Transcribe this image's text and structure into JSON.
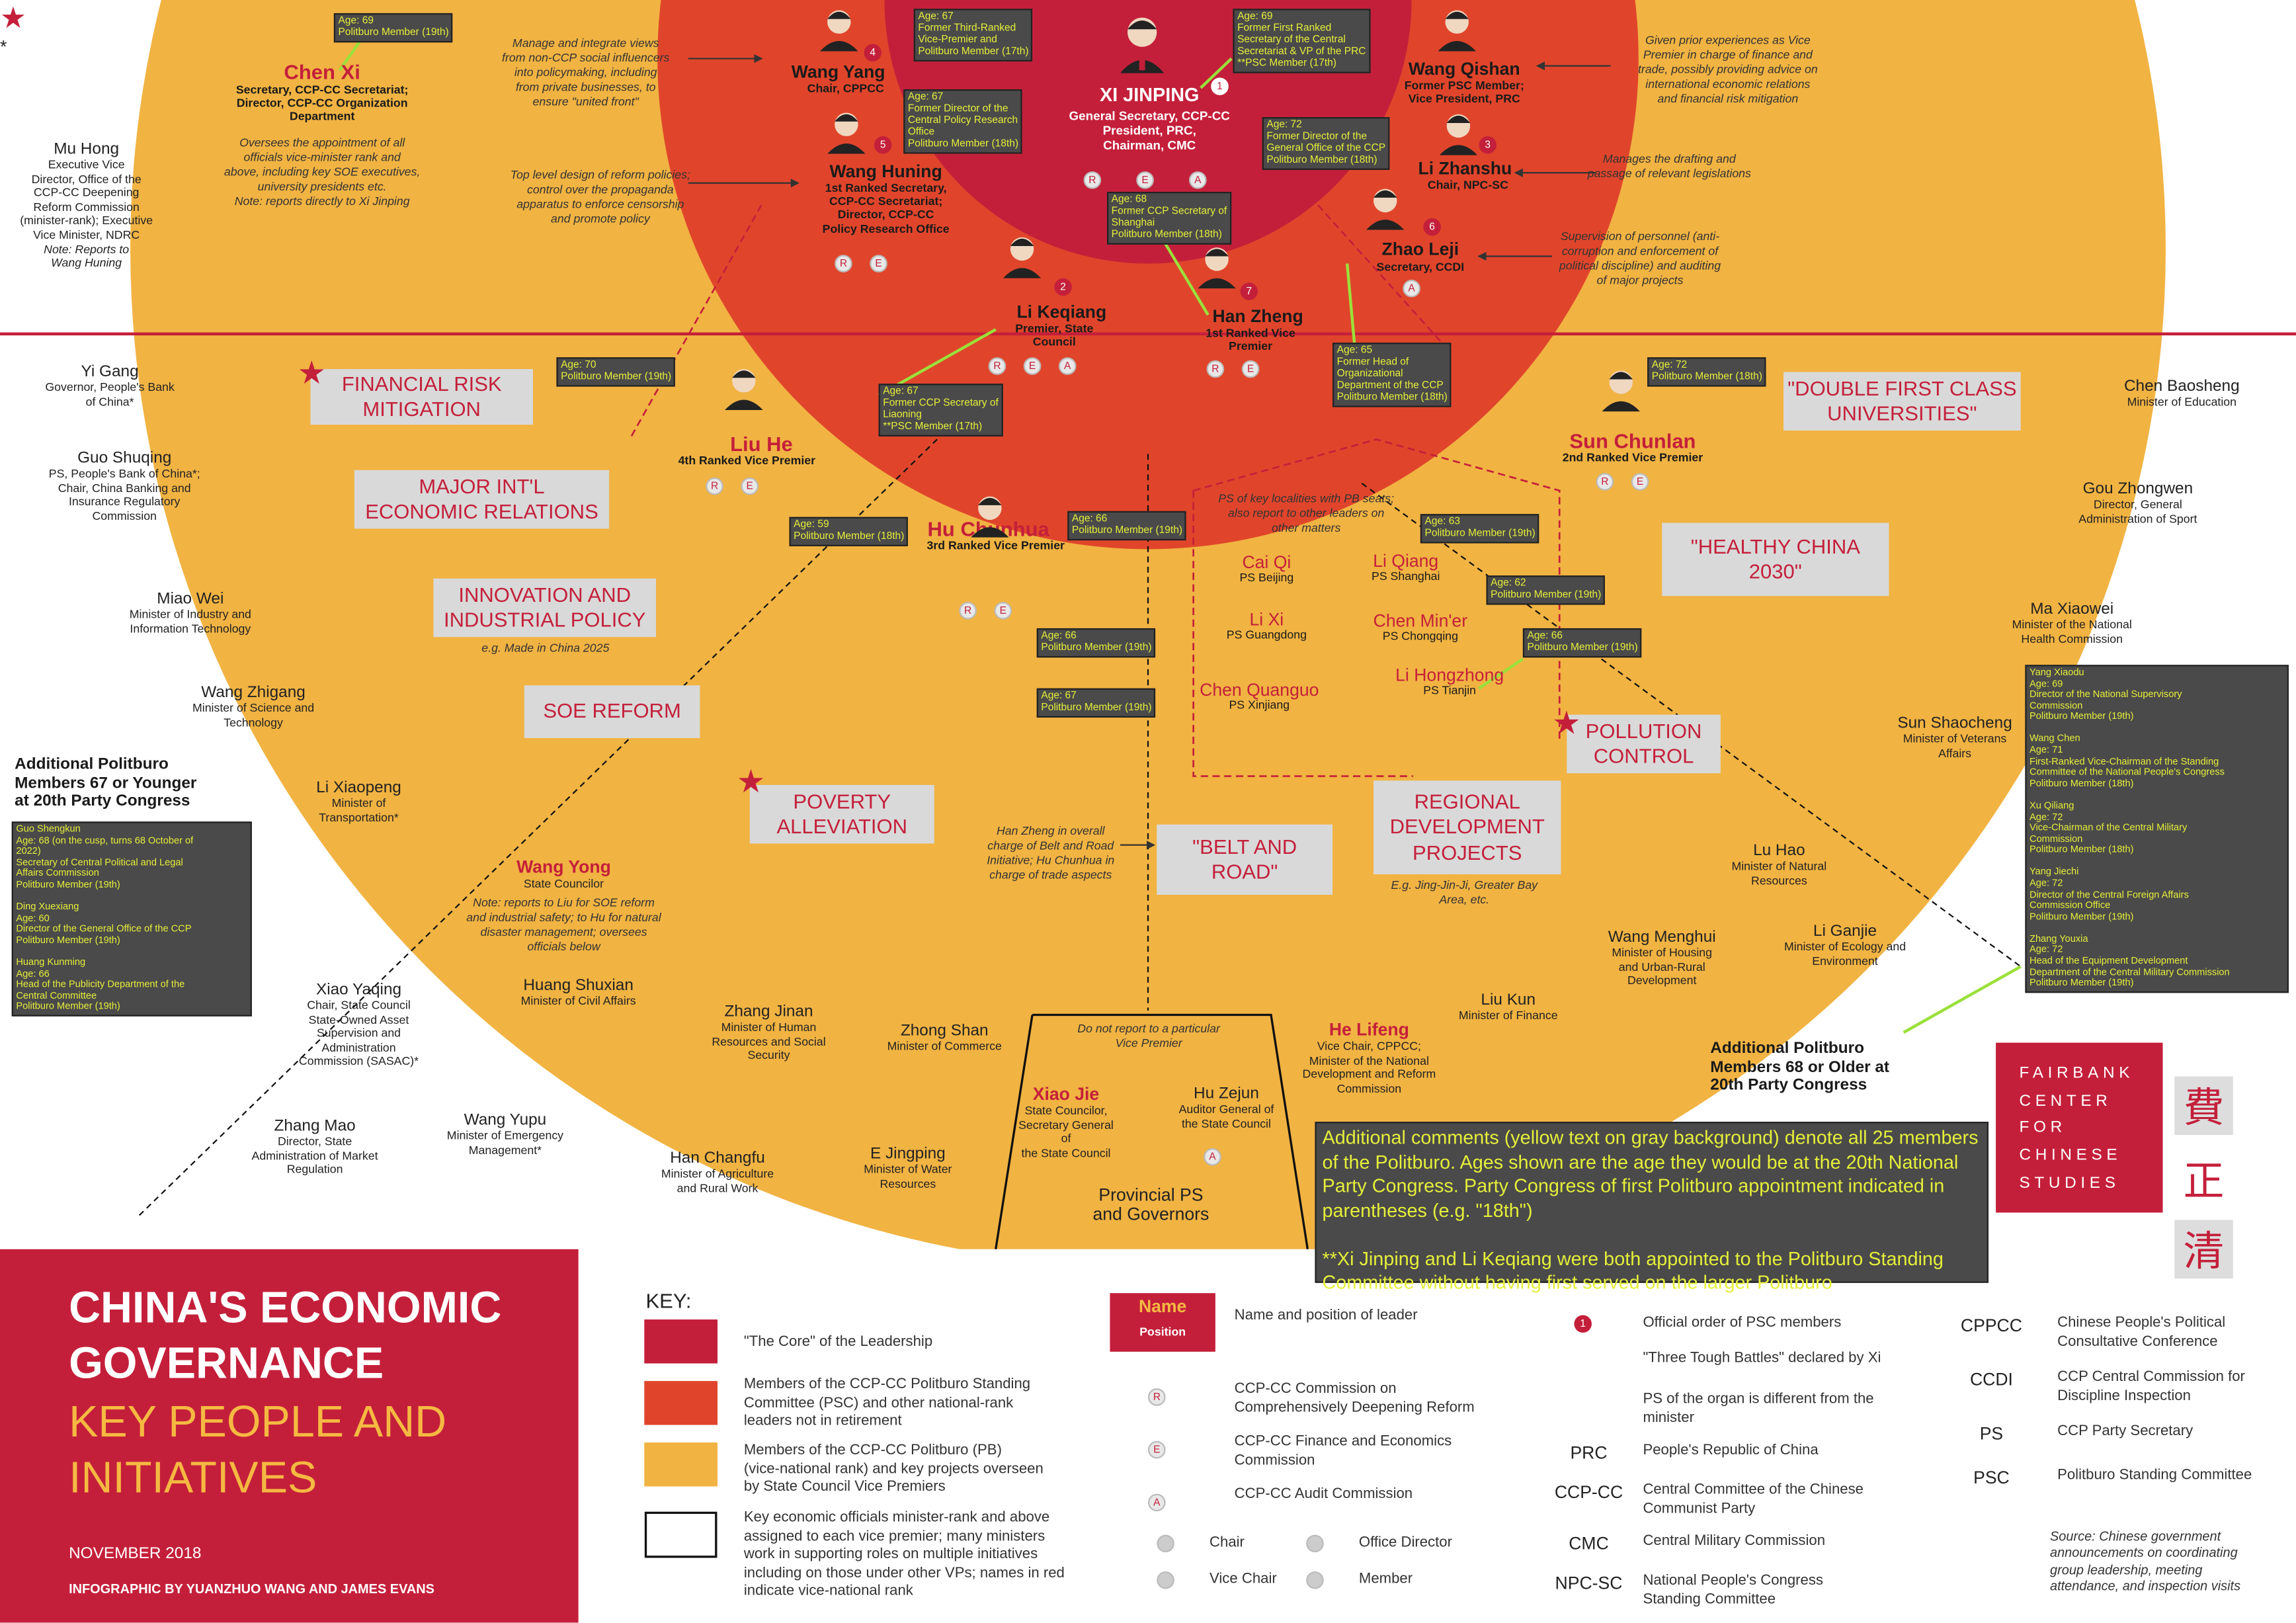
{
  "colors": {
    "core": "#c41f3a",
    "psc": "#e0452b",
    "pb": "#f1b342",
    "info_bg": "#4a4a4a",
    "info_text": "#e5ef3a",
    "project_box": "#d9d9d9"
  },
  "core": {
    "name": "XI JINPING",
    "position": "General Secretary, CCP-CC\nPresident, PRC,\nChairman, CMC",
    "rank": "1",
    "info": [
      "Age: 69",
      "Former First Ranked",
      "Secretary of the Central",
      "Secretariat & VP of the PRC",
      "**PSC Member (17th)"
    ],
    "badges": [
      "R",
      "E",
      "A"
    ]
  },
  "psc": [
    {
      "id": "wang-yang",
      "name": "Wang Yang",
      "position": "Chair, CPPCC",
      "rank": "4",
      "info": [
        "Age: 67",
        "Former Third-Ranked",
        "Vice-Premier and",
        "Politburo Member (17th)"
      ]
    },
    {
      "id": "wang-huning",
      "name": "Wang Huning",
      "position": "1st Ranked Secretary,\nCCP-CC Secretariat;\nDirector, CCP-CC\nPolicy Research Office",
      "rank": "5",
      "info": [
        "Age: 67",
        "Former Director of the",
        "Central Policy Research",
        "Office",
        "Politburo Member (18th)"
      ],
      "badges": [
        "R",
        "E"
      ]
    },
    {
      "id": "wang-qishan",
      "name": "Wang Qishan",
      "position": "Former PSC Member;\nVice President, PRC",
      "rank": ""
    },
    {
      "id": "li-zhanshu",
      "name": "Li Zhanshu",
      "position": "Chair, NPC-SC",
      "rank": "3",
      "info": [
        "Age: 72",
        "Former Director of the",
        "General Office of the CCP",
        "Politburo Member (18th)"
      ]
    },
    {
      "id": "zhao-leji",
      "name": "Zhao Leji",
      "position": "Secretary, CCDI",
      "rank": "6",
      "info": [
        "Age: 65",
        "Former Head of",
        "Organizational",
        "Department of the CCP",
        "Politburo Member (18th)"
      ],
      "badges": [
        "A"
      ]
    },
    {
      "id": "li-keqiang",
      "name": "Li Keqiang",
      "position": "Premier, State\nCouncil",
      "rank": "2",
      "info": [
        "Age: 67",
        "Former CCP Secretary of",
        "Liaoning",
        "**PSC Member (17th)"
      ],
      "badges": [
        "R",
        "E",
        "A"
      ]
    },
    {
      "id": "han-zheng",
      "name": "Han Zheng",
      "position": "1st Ranked Vice\nPremier",
      "rank": "7",
      "info": [
        "Age: 68",
        "Former CCP Secretary of",
        "Shanghai",
        "Politburo Member (18th)"
      ],
      "badges": [
        "R",
        "E"
      ]
    }
  ],
  "chen_xi": {
    "name": "Chen Xi",
    "position": "Secretary, CCP-CC Secretariat;\nDirector, CCP-CC Organization\nDepartment",
    "note": "Oversees the appointment of all\nofficials vice-minister rank and\nabove, including key SOE executives,\nuniversity presidents etc.\nNote: reports directly to Xi Jinping",
    "info": [
      "Age: 69",
      "Politburo Member (19th)"
    ]
  },
  "notes": {
    "wang_yang": "Manage and integrate views\nfrom non-CCP social influencers\ninto policymaking, including\nfrom private businesses, to\nensure \"united front\"",
    "wang_huning": "Top level design of reform policies;\ncontrol over the propaganda\napparatus to enforce censorship\nand promote policy",
    "wang_qishan": "Given prior experiences as Vice\nPremier in charge of finance and\ntrade, possibly providing advice on\ninternational economic relations\nand financial risk mitigation",
    "li_zhanshu": "Manages the drafting and\npassage of relevant legislations",
    "zhao_leji": "Supervision of personnel (anti-\ncorruption and enforcement of\npolitical discipline) and auditing\nof major projects",
    "ps_localities": "PS of key localities with PB seats;\nalso report to other leaders on\nother matters",
    "han_zheng_br": "Han Zheng in overall\ncharge of Belt and Road\nInitiative; Hu Chunhua in\ncharge of trade aspects",
    "innovation": "e.g. Made in China 2025",
    "regional": "E.g. Jing-Jin-Ji, Greater Bay\nArea, etc.",
    "not_report": "Do not report to a particular\nVice Premier",
    "wang_yong": "Note: reports to Liu for SOE reform\nand industrial safety; to Hu for natural\ndisaster management; oversees\nofficials below"
  },
  "vice_premiers": [
    {
      "id": "liu-he",
      "name": "Liu He",
      "position": "4th Ranked Vice Premier",
      "info": [
        "Age: 70",
        "Politburo Member (19th)"
      ],
      "badges": [
        "R",
        "E"
      ]
    },
    {
      "id": "hu-chunhua",
      "name": "Hu Chunhua",
      "position": "3rd Ranked Vice Premier",
      "info": [
        "Age: 59",
        "Politburo Member (18th)"
      ],
      "badges": [
        "R",
        "E"
      ]
    },
    {
      "id": "sun-chunlan",
      "name": "Sun Chunlan",
      "position": "2nd Ranked Vice Premier",
      "info": [
        "Age: 72",
        "Politburo Member (18th)"
      ],
      "badges": [
        "R",
        "E"
      ]
    }
  ],
  "party_secretaries": [
    {
      "name": "Cai Qi",
      "position": "PS Beijing",
      "info": [
        "Age: 66",
        "Politburo Member (19th)"
      ]
    },
    {
      "name": "Li Xi",
      "position": "PS Guangdong",
      "info": [
        "Age: 66",
        "Politburo Member (19th)"
      ]
    },
    {
      "name": "Chen Quanguo",
      "position": "PS Xinjiang",
      "info": [
        "Age: 67",
        "Politburo Member (19th)"
      ]
    },
    {
      "name": "Li Qiang",
      "position": "PS Shanghai",
      "info": [
        "Age: 63",
        "Politburo Member (19th)"
      ]
    },
    {
      "name": "Chen Min'er",
      "position": "PS Chongqing",
      "info": [
        "Age: 62",
        "Politburo Member (19th)"
      ]
    },
    {
      "name": "Li Hongzhong",
      "position": "PS Tianjin",
      "info": [
        "Age: 66",
        "Politburo Member (19th)"
      ]
    }
  ],
  "projects": [
    "FINANCIAL RISK\nMITIGATION",
    "MAJOR INT'L\nECONOMIC RELATIONS",
    "INNOVATION AND\nINDUSTRIAL POLICY",
    "SOE REFORM",
    "POVERTY\nALLEVIATION",
    "\"BELT AND\nROAD\"",
    "\"DOUBLE FIRST CLASS\nUNIVERSITIES\"",
    "\"HEALTHY CHINA\n2030\"",
    "POLLUTION\nCONTROL",
    "REGIONAL\nDEVELOPMENT\nPROJECTS"
  ],
  "officials": [
    {
      "name": "Mu Hong",
      "position": "Executive Vice\nDirector, Office of the\nCCP-CC Deepening\nReform Commission\n(minister-rank); Executive\nVice Minister, NDRC",
      "note": "Note: Reports to\nWang Huning"
    },
    {
      "name": "Yi Gang",
      "position": "Governor, People's Bank\nof China*"
    },
    {
      "name": "Guo Shuqing",
      "position": "PS, People's Bank of China*;\nChair, China Banking and\nInsurance Regulatory\nCommission"
    },
    {
      "name": "Miao Wei",
      "position": "Minister of Industry and\nInformation Technology"
    },
    {
      "name": "Wang Zhigang",
      "position": "Minister of Science and\nTechnology"
    },
    {
      "name": "Li Xiaopeng",
      "position": "Minister of\nTransportation*"
    },
    {
      "name": "Wang Yong",
      "position": "State Councilor",
      "red": true
    },
    {
      "name": "Xiao Yaqing",
      "position": "Chair, State Council\nState-Owned Asset\nSupervision and\nAdministration\nCommission (SASAC)*"
    },
    {
      "name": "Huang Shuxian",
      "position": "Minister of Civil Affairs"
    },
    {
      "name": "Zhang Jinan",
      "position": "Minister of Human\nResources and Social\nSecurity"
    },
    {
      "name": "Zhong Shan",
      "position": "Minister of Commerce"
    },
    {
      "name": "Zhang Mao",
      "position": "Director, State\nAdministration of Market\nRegulation"
    },
    {
      "name": "Wang Yupu",
      "position": "Minister of Emergency\nManagement*"
    },
    {
      "name": "Han Changfu",
      "position": "Minister of Agriculture\nand Rural Work"
    },
    {
      "name": "E Jingping",
      "position": "Minister of Water\nResources"
    },
    {
      "name": "Xiao Jie",
      "position": "State Councilor,\nSecretary General of\nthe State Council",
      "red": true
    },
    {
      "name": "Hu Zejun",
      "position": "Auditor General of\nthe State Council"
    },
    {
      "name": "He Lifeng",
      "position": "Vice Chair, CPPCC;\nMinister of the National\nDevelopment and Reform\nCommission",
      "red": true
    },
    {
      "name": "Liu Kun",
      "position": "Minister of Finance"
    },
    {
      "name": "Wang Menghui",
      "position": "Minister of Housing\nand Urban-Rural\nDevelopment"
    },
    {
      "name": "Li Ganjie",
      "position": "Minister of Ecology and\nEnvironment"
    },
    {
      "name": "Lu Hao",
      "position": "Minister of Natural\nResources"
    },
    {
      "name": "Sun Shaocheng",
      "position": "Minister of Veterans\nAffairs"
    },
    {
      "name": "Ma Xiaowei",
      "position": "Minister of the National\nHealth Commission"
    },
    {
      "name": "Gou Zhongwen",
      "position": "Director, General\nAdministration of Sport"
    },
    {
      "name": "Chen Baosheng",
      "position": "Minister of Education"
    }
  ],
  "provincial": "Provincial PS\nand Governors",
  "younger": {
    "title": "Additional Politburo\nMembers 67 or Younger\nat 20th Party Congress",
    "info": [
      "Guo Shengkun",
      "Age: 68 (on the cusp, turns 68 October of",
      "2022)",
      "Secretary of Central Political and Legal",
      "Affairs Commission",
      "Politburo Member (19th)",
      "",
      "Ding Xuexiang",
      "Age: 60",
      "Director of the General Office of the CCP",
      "Politburo Member (19th)",
      "",
      "Huang Kunming",
      "Age: 66",
      "Head of the Publicity Department of the",
      "Central Committee",
      "Politburo Member (19th)"
    ]
  },
  "older": {
    "title": "Additional Politburo\nMembers 68 or Older at\n20th Party Congress",
    "info": [
      "Yang Xiaodu",
      "Age: 69",
      "Director of the National Supervisory",
      "Commission",
      "Politburo Member (19th)",
      "",
      "Wang Chen",
      "Age: 71",
      "First-Ranked Vice-Chairman of the Standing",
      "Committee of the National People's Congress",
      "Politburo Member (18th)",
      "",
      "Xu Qiliang",
      "Age: 72",
      "Vice-Chairman of the Central Military",
      "Commission",
      "Politburo Member (18th)",
      "",
      "Yang Jiechi",
      "Age: 72",
      "Director of the Central Foreign Affairs",
      "Commission Office",
      "Politburo Member (19th)",
      "",
      "Zhang Youxia",
      "Age: 72",
      "Head of the Equipment Development",
      "Department of the Central Military Commission",
      "Politburo Member (19th)"
    ]
  },
  "comment": "Additional comments (yellow text on gray background) denote all 25 members of the Politburo. Ages shown are the age they would be at the 20th National Party Congress. Party Congress of first Politburo appointment indicated in parentheses (e.g. \"18th\")\n\n**Xi Jinping and Li Keqiang were both appointed to the Politburo Standing Committee without having first served on the larger Politburo",
  "fairbank": {
    "lines": [
      "FAIRBANK",
      "CENTER",
      "FOR",
      "CHINESE",
      "STUDIES"
    ],
    "cjk": [
      "費",
      "正",
      "清"
    ]
  },
  "title_panel": {
    "title": "CHINA'S ECONOMIC\nGOVERNANCE",
    "subtitle": "KEY PEOPLE AND\nINITIATIVES",
    "date": "NOVEMBER 2018",
    "credit": "INFOGRAPHIC BY YUANZHUO WANG AND JAMES EVANS"
  },
  "key": {
    "title": "KEY:",
    "items": [
      "\"The Core\" of the Leadership",
      "Members of the CCP-CC Politburo Standing\nCommittee (PSC) and other national-rank\nleaders not in retirement",
      "Members of the CCP-CC Politburo (PB)\n(vice-national rank) and key projects overseen\nby State Council Vice Premiers",
      "Key economic officials minister-rank and above\nassigned to each vice premier; many ministers\nwork in supporting roles on multiple initiatives\nincluding on those under other VPs; names in red\nindicate vice-national rank"
    ],
    "name_box": {
      "name": "Name",
      "position": "Position",
      "desc": "Name and position of leader"
    },
    "badges": [
      {
        "letter": "R",
        "desc": "CCP-CC Commission on\nComprehensively Deepening Reform"
      },
      {
        "letter": "E",
        "desc": "CCP-CC Finance and Economics\nCommission"
      },
      {
        "letter": "A",
        "desc": "CCP-CC Audit Commission"
      }
    ],
    "roles": [
      "Chair",
      "Vice Chair",
      "Office Director",
      "Member"
    ],
    "symbols": [
      {
        "sym": "1",
        "desc": "Official order of PSC members"
      },
      {
        "sym": "★",
        "desc": "\"Three Tough Battles\" declared by Xi"
      },
      {
        "sym": "*",
        "desc": "PS of the organ is different from the\nminister"
      }
    ],
    "abbr": [
      {
        "a": "PRC",
        "d": "People's Republic of China"
      },
      {
        "a": "CCP-CC",
        "d": "Central Committee of the Chinese\nCommunist Party"
      },
      {
        "a": "CMC",
        "d": "Central Military Commission"
      },
      {
        "a": "NPC-SC",
        "d": "National People's Congress\nStanding Committee"
      },
      {
        "a": "CPPCC",
        "d": "Chinese People's Political\nConsultative Conference"
      },
      {
        "a": "CCDI",
        "d": "CCP Central Commission for\nDiscipline Inspection"
      },
      {
        "a": "PS",
        "d": "CCP Party Secretary"
      },
      {
        "a": "PSC",
        "d": "Politburo Standing Committee"
      }
    ],
    "source": "Source: Chinese government\nannouncements on coordinating\ngroup leadership, meeting\nattendance, and inspection visits"
  }
}
